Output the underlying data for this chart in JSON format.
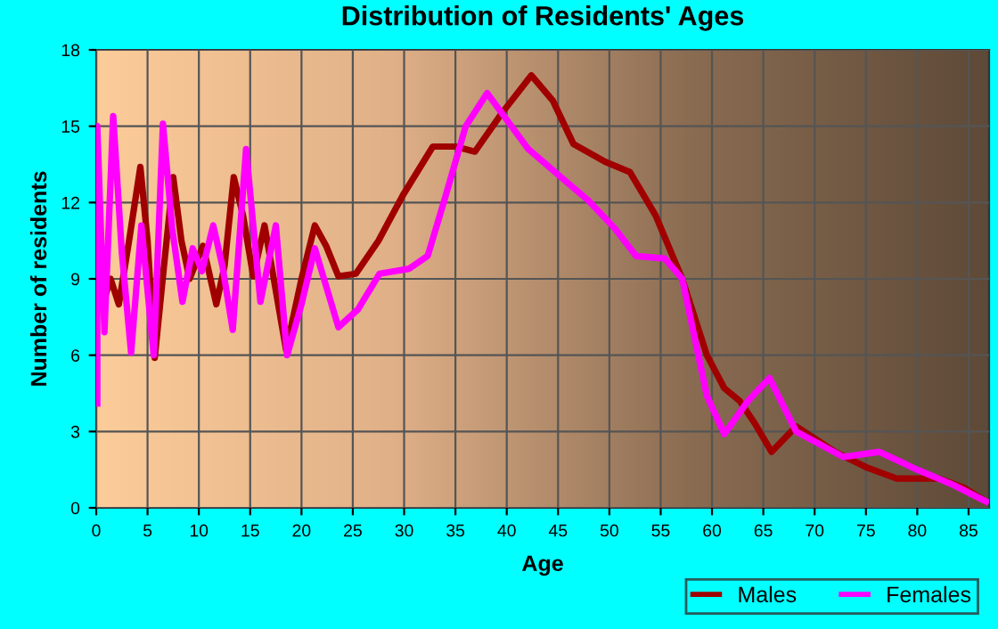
{
  "chart_data": {
    "type": "line",
    "title": "Distribution of Residents' Ages",
    "xlabel": "Age",
    "ylabel": "Number of residents",
    "xlim": [
      0,
      87
    ],
    "xticks": [
      0,
      5,
      10,
      15,
      20,
      25,
      30,
      35,
      40,
      45,
      50,
      55,
      60,
      65,
      70,
      75,
      80,
      85
    ],
    "ylim": [
      0,
      18
    ],
    "yticks": [
      0,
      3,
      6,
      9,
      12,
      15,
      18
    ],
    "grid": true,
    "legend": "bottom right",
    "marker": "none",
    "line_style": "solid",
    "series": [
      {
        "name": "Males",
        "color": "#a00000",
        "x": [
          0.1,
          0.4,
          0.7,
          1.4,
          2.2,
          3.2,
          4.3,
          5.0,
          5.7,
          6.6,
          7.5,
          8.3,
          9.1,
          10.4,
          11.7,
          12.5,
          13.4,
          14.3,
          15.3,
          16.4,
          17.3,
          18.5,
          20.0,
          21.3,
          22.4,
          23.6,
          25.3,
          27.5,
          29.9,
          32.8,
          35.0,
          36.9,
          39.5,
          42.4,
          44.5,
          46.5,
          49.6,
          52.0,
          54.5,
          57.1,
          59.5,
          61.2,
          62.7,
          64.2,
          65.8,
          68.2,
          72.0,
          75.0,
          78.0,
          82.1,
          84.5,
          86.7
        ],
        "values": [
          8.1,
          9.0,
          8.1,
          9.0,
          8.0,
          10.5,
          13.4,
          10.5,
          5.9,
          9.5,
          13.0,
          10.5,
          9.0,
          10.3,
          8.0,
          9.5,
          13.0,
          11.5,
          9.1,
          11.1,
          9.0,
          6.2,
          9.0,
          11.1,
          10.3,
          9.1,
          9.2,
          10.5,
          12.3,
          14.2,
          14.2,
          14.0,
          15.5,
          17.0,
          16.0,
          14.3,
          13.6,
          13.2,
          11.5,
          9.0,
          6.0,
          4.7,
          4.2,
          3.3,
          2.2,
          3.2,
          2.2,
          1.6,
          1.15,
          1.15,
          0.8,
          0.25
        ]
      },
      {
        "name": "Females",
        "color": "#ff00ff",
        "x": [
          0.1,
          0.1,
          0.8,
          1.65,
          2.5,
          3.4,
          4.4,
          5.6,
          6.5,
          7.4,
          8.4,
          9.4,
          10.3,
          11.4,
          12.3,
          13.3,
          14.6,
          16.0,
          17.5,
          18.6,
          20.0,
          21.3,
          23.6,
          25.5,
          27.6,
          30.5,
          32.3,
          34.0,
          36.0,
          38.1,
          42.1,
          45.0,
          47.9,
          50.5,
          52.6,
          55.4,
          57.1,
          59.5,
          61.2,
          63.5,
          65.6,
          68.2,
          72.8,
          76.3,
          80.0,
          83.5,
          86.7
        ],
        "values": [
          4.1,
          15.0,
          6.9,
          15.4,
          10.0,
          6.1,
          11.1,
          6.0,
          15.1,
          11.0,
          8.1,
          10.2,
          9.3,
          11.1,
          9.5,
          7.0,
          14.1,
          8.1,
          11.1,
          6.0,
          8.0,
          10.2,
          7.1,
          7.8,
          9.2,
          9.4,
          9.9,
          12.2,
          15.0,
          16.3,
          14.1,
          13.1,
          12.1,
          11.0,
          9.9,
          9.8,
          9.0,
          4.4,
          2.9,
          4.2,
          5.1,
          3.0,
          2.0,
          2.2,
          1.5,
          0.9,
          0.25
        ]
      }
    ]
  }
}
